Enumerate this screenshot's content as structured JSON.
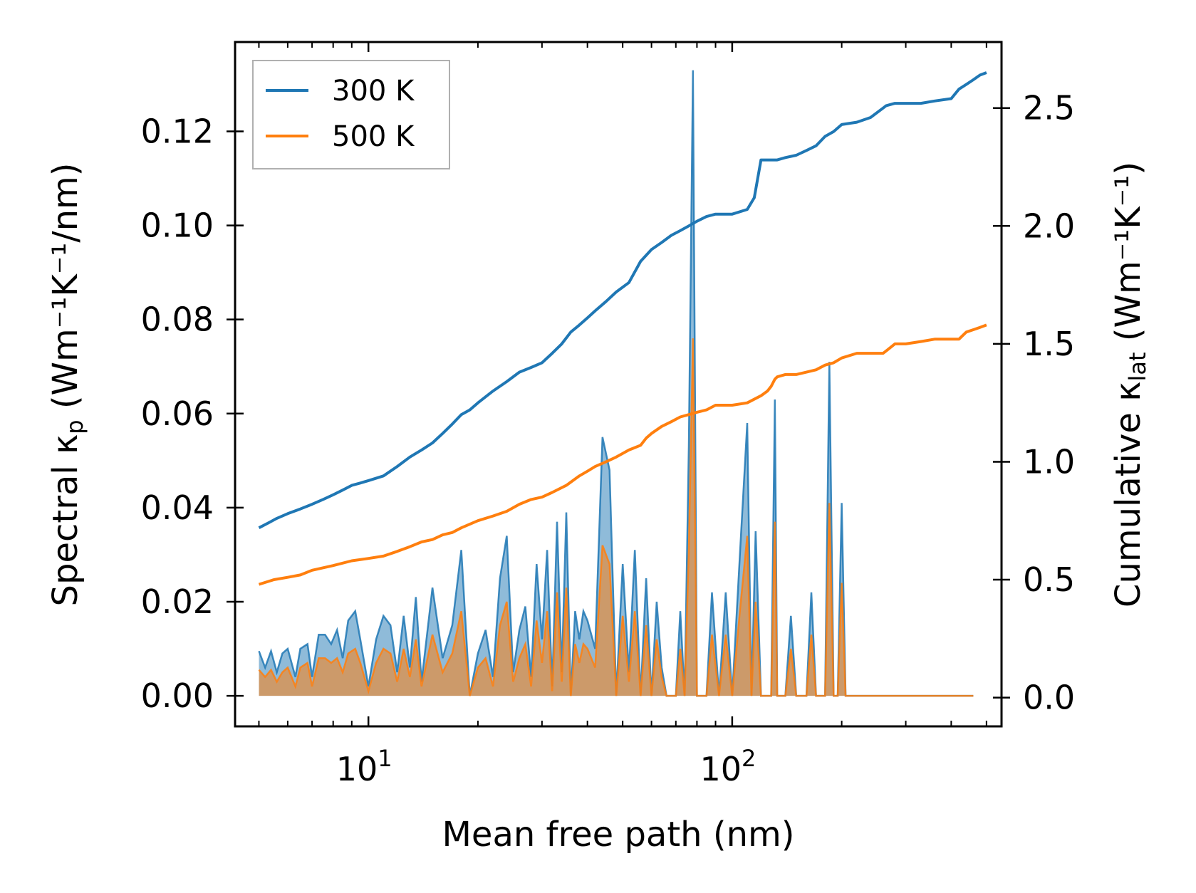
{
  "chart_data": {
    "type": "area+line",
    "xscale": "log",
    "xlim": [
      4.3,
      550
    ],
    "ylim_left": [
      -0.0065,
      0.139
    ],
    "ylim_right": [
      -0.122,
      2.78
    ],
    "xlabel": "Mean free path (nm)",
    "ylabel_left": {
      "main": "Spectral κ",
      "sub": "p",
      "units": " (Wm⁻¹K⁻¹/nm)"
    },
    "ylabel_right": {
      "main": "Cumulative κ",
      "sub": "lat",
      "units": " (Wm⁻¹K⁻¹)"
    },
    "xticks": [
      {
        "value": 10,
        "base": "10",
        "exp": "1"
      },
      {
        "value": 100,
        "base": "10",
        "exp": "2"
      }
    ],
    "yticks_left": [
      {
        "value": 0.0,
        "label": "0.00"
      },
      {
        "value": 0.02,
        "label": "0.02"
      },
      {
        "value": 0.04,
        "label": "0.04"
      },
      {
        "value": 0.06,
        "label": "0.06"
      },
      {
        "value": 0.08,
        "label": "0.08"
      },
      {
        "value": 0.1,
        "label": "0.10"
      },
      {
        "value": 0.12,
        "label": "0.12"
      }
    ],
    "yticks_right": [
      {
        "value": 0.0,
        "label": "0.0"
      },
      {
        "value": 0.5,
        "label": "0.5"
      },
      {
        "value": 1.0,
        "label": "1.0"
      },
      {
        "value": 1.5,
        "label": "1.5"
      },
      {
        "value": 2.0,
        "label": "2.0"
      },
      {
        "value": 2.5,
        "label": "2.5"
      }
    ],
    "legend": {
      "position": "top-left",
      "entries": [
        {
          "label": "300 K",
          "color": "#1f77b4"
        },
        {
          "label": "500 K",
          "color": "#ff7f0e"
        }
      ]
    },
    "spectral_x": [
      5.0,
      5.2,
      5.4,
      5.6,
      5.8,
      6.0,
      6.3,
      6.5,
      6.8,
      7.0,
      7.3,
      7.6,
      7.9,
      8.2,
      8.5,
      8.8,
      9.2,
      9.5,
      10.0,
      10.5,
      11.0,
      11.5,
      12.0,
      12.5,
      13.0,
      13.5,
      14.0,
      15.0,
      16.0,
      17.0,
      18.0,
      19.0,
      20.0,
      21.0,
      22.0,
      23.0,
      24.0,
      25.0,
      26.0,
      27.0,
      28.0,
      29.0,
      30.0,
      31.0,
      32.0,
      33.0,
      34.0,
      35.0,
      36.0,
      37.0,
      38.0,
      39.0,
      40.0,
      42.0,
      44.0,
      46.0,
      48.0,
      50.0,
      52.0,
      54.0,
      56.0,
      58.0,
      60.0,
      62.0,
      64.0,
      66.0,
      68.0,
      70.0,
      72.0,
      74.0,
      76.0,
      78.0,
      80.0,
      82.0,
      85.0,
      88.0,
      92.0,
      96.0,
      100.0,
      105.0,
      110.0,
      113.0,
      116.0,
      120.0,
      124.0,
      128.0,
      131.0,
      133.0,
      136.0,
      140.0,
      145.0,
      150.0,
      155.0,
      160.0,
      165.0,
      170.0,
      175.0,
      180.0,
      185.0,
      190.0,
      195.0,
      200.0,
      205.0,
      210.0,
      220.0,
      230.0,
      240.0,
      250.0,
      260.0,
      265.0,
      270.0,
      280.0,
      290.0,
      300.0,
      310.0,
      320.0,
      330.0,
      340.0,
      350.0,
      360.0,
      370.0,
      380.0,
      390.0,
      400.0,
      410.0,
      420.0,
      430.0,
      440.0,
      450.0,
      460.0,
      470.0,
      480.0,
      490.0,
      500.0
    ],
    "series": [
      {
        "name": "300 K",
        "color": "#1f77b4",
        "spectral": [
          0.0095,
          0.006,
          0.0095,
          0.005,
          0.009,
          0.01,
          0.004,
          0.01,
          0.011,
          0.004,
          0.013,
          0.013,
          0.011,
          0.014,
          0.008,
          0.016,
          0.018,
          0.012,
          0.002,
          0.012,
          0.017,
          0.015,
          0.005,
          0.017,
          0.006,
          0.021,
          0.003,
          0.023,
          0.008,
          0.015,
          0.031,
          0.0,
          0.009,
          0.014,
          0.004,
          0.025,
          0.034,
          0.005,
          0.014,
          0.019,
          0.004,
          0.028,
          0.012,
          0.031,
          0.002,
          0.037,
          0.005,
          0.039,
          0.0,
          0.018,
          0.012,
          0.018,
          0.016,
          0.01,
          0.055,
          0.048,
          0.0,
          0.028,
          0.005,
          0.031,
          0.0,
          0.025,
          0.0,
          0.02,
          0.006,
          0.0,
          0.0,
          0.0,
          0.018,
          0.0,
          0.053,
          0.133,
          0.0,
          0.0,
          0.0,
          0.022,
          0.0,
          0.022,
          0.0,
          0.03,
          0.058,
          0.0,
          0.035,
          0.0,
          0.0,
          0.0,
          0.063,
          0.0,
          0.0,
          0.0,
          0.017,
          0.0,
          0.0,
          0.0,
          0.022,
          0.0,
          0.0,
          0.0,
          0.071,
          0.0,
          0.0,
          0.041,
          0.0,
          0.0,
          0.0,
          0.0,
          0.0,
          0.0,
          0.0,
          0.0,
          0.0,
          0.0,
          0.0,
          0.0,
          0.0,
          0.0,
          0.0,
          0.0,
          0.0,
          0.0,
          0.0,
          0.0,
          0.0,
          0.0,
          0.0,
          0.0,
          0.0,
          0.0,
          0.0,
          0.0
        ],
        "cum_x": [
          5.0,
          5.3,
          5.6,
          6.0,
          6.5,
          7.0,
          7.5,
          8.0,
          8.5,
          9.0,
          9.5,
          10.0,
          11.0,
          12.0,
          13.0,
          14.0,
          15.0,
          16.0,
          17.0,
          18.0,
          19.0,
          20.0,
          22.0,
          24.0,
          26.0,
          28.0,
          30.0,
          32.0,
          34.0,
          36.0,
          38.0,
          40.0,
          42.0,
          45.0,
          48.0,
          52.0,
          56.0,
          60.0,
          64.0,
          68.0,
          72.0,
          76.0,
          80.0,
          85.0,
          90.0,
          100.0,
          110.0,
          115.0,
          120.0,
          125.0,
          128.0,
          131.0,
          133.0,
          140.0,
          150.0,
          160.0,
          170.0,
          180.0,
          190.0,
          200.0,
          220.0,
          240.0,
          260.0,
          265.0,
          280.0,
          300.0,
          330.0,
          360.0,
          400.0,
          420.0,
          440.0,
          460.0,
          480.0,
          500.0
        ],
        "cumulative": [
          0.72,
          0.74,
          0.76,
          0.78,
          0.8,
          0.82,
          0.84,
          0.86,
          0.88,
          0.9,
          0.91,
          0.92,
          0.94,
          0.98,
          1.02,
          1.05,
          1.08,
          1.12,
          1.16,
          1.2,
          1.22,
          1.25,
          1.3,
          1.34,
          1.38,
          1.4,
          1.42,
          1.46,
          1.5,
          1.55,
          1.58,
          1.61,
          1.64,
          1.68,
          1.72,
          1.76,
          1.85,
          1.9,
          1.93,
          1.96,
          1.98,
          2.0,
          2.02,
          2.04,
          2.05,
          2.05,
          2.07,
          2.12,
          2.28,
          2.28,
          2.28,
          2.28,
          2.28,
          2.29,
          2.3,
          2.32,
          2.34,
          2.38,
          2.4,
          2.43,
          2.44,
          2.46,
          2.5,
          2.51,
          2.52,
          2.52,
          2.52,
          2.53,
          2.54,
          2.58,
          2.6,
          2.62,
          2.64,
          2.65
        ]
      },
      {
        "name": "500 K",
        "color": "#ff7f0e",
        "spectral": [
          0.0055,
          0.004,
          0.0055,
          0.003,
          0.005,
          0.006,
          0.002,
          0.006,
          0.007,
          0.002,
          0.008,
          0.008,
          0.007,
          0.008,
          0.005,
          0.009,
          0.01,
          0.007,
          0.001,
          0.007,
          0.01,
          0.009,
          0.003,
          0.01,
          0.004,
          0.012,
          0.002,
          0.013,
          0.005,
          0.009,
          0.018,
          0.0,
          0.006,
          0.008,
          0.002,
          0.015,
          0.02,
          0.003,
          0.008,
          0.011,
          0.002,
          0.016,
          0.007,
          0.018,
          0.001,
          0.022,
          0.003,
          0.023,
          0.0,
          0.011,
          0.007,
          0.011,
          0.01,
          0.006,
          0.032,
          0.028,
          0.0,
          0.017,
          0.003,
          0.018,
          0.0,
          0.015,
          0.0,
          0.012,
          0.004,
          0.0,
          0.0,
          0.0,
          0.01,
          0.0,
          0.031,
          0.076,
          0.0,
          0.0,
          0.0,
          0.013,
          0.0,
          0.013,
          0.0,
          0.018,
          0.034,
          0.0,
          0.02,
          0.0,
          0.0,
          0.0,
          0.037,
          0.0,
          0.0,
          0.0,
          0.01,
          0.0,
          0.0,
          0.0,
          0.013,
          0.0,
          0.0,
          0.0,
          0.041,
          0.0,
          0.0,
          0.024,
          0.0,
          0.0,
          0.0,
          0.0,
          0.0,
          0.0,
          0.0,
          0.0,
          0.0,
          0.0,
          0.0,
          0.0,
          0.0,
          0.0,
          0.0,
          0.0,
          0.0,
          0.0,
          0.0,
          0.0,
          0.0,
          0.0,
          0.0,
          0.0,
          0.0,
          0.0,
          0.0,
          0.0
        ],
        "cum_x": [
          5.0,
          5.5,
          6.0,
          6.5,
          7.0,
          8.0,
          9.0,
          10.0,
          11.0,
          12.0,
          13.0,
          14.0,
          15.0,
          16.0,
          17.0,
          18.0,
          20.0,
          22.0,
          24.0,
          26.0,
          28.0,
          30.0,
          32.0,
          35.0,
          38.0,
          40.0,
          42.0,
          45.0,
          48.0,
          52.0,
          56.0,
          58.0,
          60.0,
          64.0,
          68.0,
          72.0,
          76.0,
          80.0,
          85.0,
          90.0,
          100.0,
          110.0,
          120.0,
          125.0,
          128.0,
          131.0,
          133.0,
          140.0,
          150.0,
          160.0,
          170.0,
          180.0,
          190.0,
          200.0,
          220.0,
          240.0,
          260.0,
          265.0,
          280.0,
          300.0,
          330.0,
          360.0,
          400.0,
          420.0,
          440.0,
          460.0,
          480.0,
          500.0
        ],
        "cumulative": [
          0.48,
          0.5,
          0.51,
          0.52,
          0.54,
          0.56,
          0.58,
          0.59,
          0.6,
          0.62,
          0.64,
          0.66,
          0.67,
          0.69,
          0.7,
          0.72,
          0.75,
          0.77,
          0.79,
          0.82,
          0.84,
          0.85,
          0.87,
          0.9,
          0.94,
          0.96,
          0.98,
          1.0,
          1.02,
          1.05,
          1.07,
          1.1,
          1.12,
          1.15,
          1.17,
          1.19,
          1.2,
          1.21,
          1.22,
          1.24,
          1.24,
          1.25,
          1.28,
          1.3,
          1.32,
          1.35,
          1.36,
          1.37,
          1.37,
          1.38,
          1.39,
          1.41,
          1.42,
          1.44,
          1.46,
          1.46,
          1.46,
          1.47,
          1.5,
          1.5,
          1.51,
          1.52,
          1.52,
          1.52,
          1.55,
          1.56,
          1.57,
          1.58
        ]
      }
    ]
  }
}
